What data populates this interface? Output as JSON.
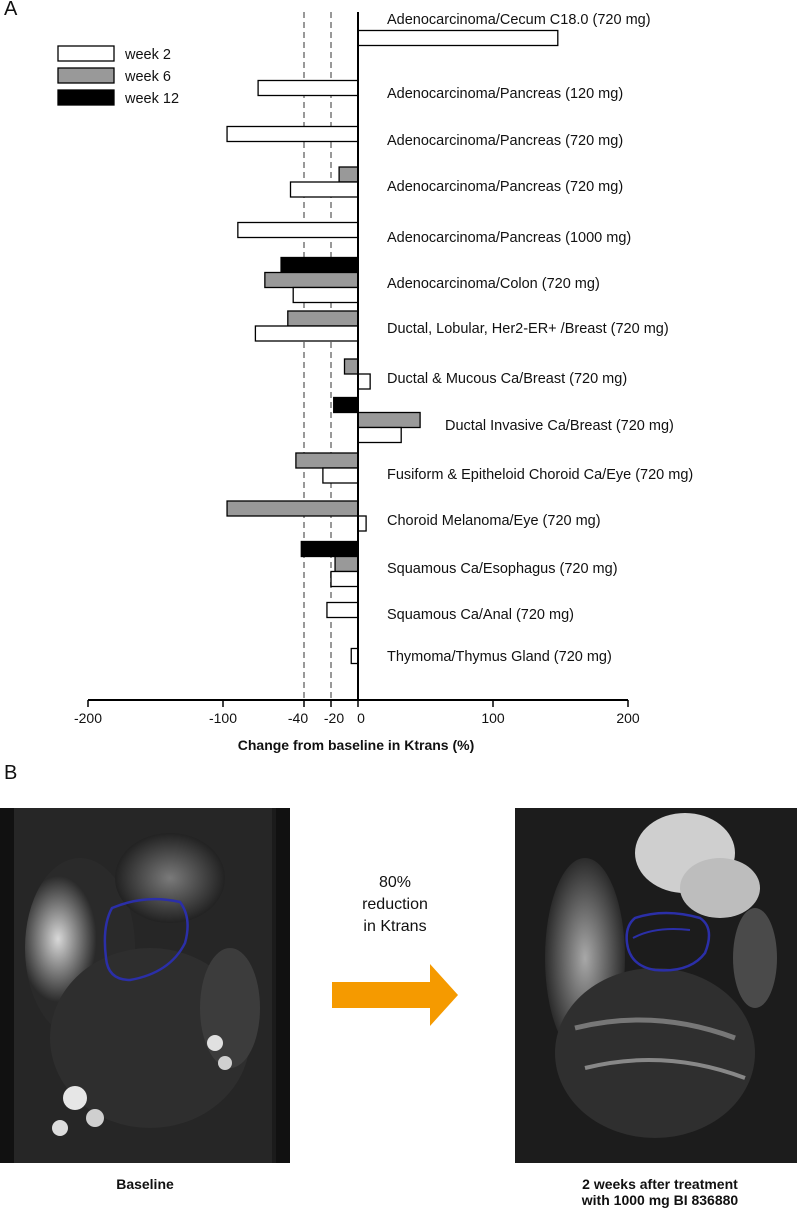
{
  "panel_a_letter": "A",
  "panel_b_letter": "B",
  "chart_data": {
    "type": "bar",
    "orientation": "horizontal",
    "title": "",
    "xlabel": "Change from baseline in Ktrans (%)",
    "ylabel": "",
    "xlim": [
      -200,
      200
    ],
    "x_ticks": [
      -200,
      -100,
      -40,
      -20,
      0,
      100,
      200
    ],
    "reference_lines": [
      -40,
      -20
    ],
    "legend_position": "top-left",
    "categories": [
      "Adenocarcinoma/Cecum C18.0 (720 mg)",
      "Adenocarcinoma/Pancreas (120 mg)",
      "Adenocarcinoma/Pancreas (720 mg)",
      "Adenocarcinoma/Pancreas (720 mg)",
      "Adenocarcinoma/Pancreas (1000 mg)",
      "Adenocarcinoma/Colon (720 mg)",
      "Ductal, Lobular, Her2-ER+ /Breast (720 mg)",
      "Ductal & Mucous Ca/Breast (720 mg)",
      "Ductal Invasive Ca/Breast (720 mg)",
      "Fusiform & Epitheloid Choroid Ca/Eye (720 mg)",
      "Choroid Melanoma/Eye (720 mg)",
      "Squamous Ca/Esophagus (720 mg)",
      "Squamous Ca/Anal (720 mg)",
      "Thymoma/Thymus Gland (720 mg)"
    ],
    "series": [
      {
        "name": "week 2",
        "color": "#ffffff",
        "values": [
          148,
          -74,
          -97,
          -50,
          -89,
          -48,
          -76,
          9,
          32,
          -26,
          6,
          -20,
          -23,
          -5
        ]
      },
      {
        "name": "week 6",
        "color": "#999999",
        "values": [
          null,
          null,
          null,
          -14,
          null,
          -69,
          -52,
          -10,
          46,
          -46,
          -97,
          -17,
          null,
          null
        ]
      },
      {
        "name": "week 12",
        "color": "#000000",
        "values": [
          null,
          null,
          null,
          null,
          null,
          -57,
          null,
          null,
          -18,
          null,
          null,
          -42,
          null,
          null
        ]
      }
    ]
  },
  "panel_b": {
    "arrow_text": [
      "80%",
      "reduction",
      "in Ktrans"
    ],
    "arrow_color": "#f59a00",
    "left_caption": "Baseline",
    "right_caption_line1": "2 weeks after treatment",
    "right_caption_line2": "with 1000 mg BI 836880",
    "roi_color": "#2b2fa8"
  }
}
